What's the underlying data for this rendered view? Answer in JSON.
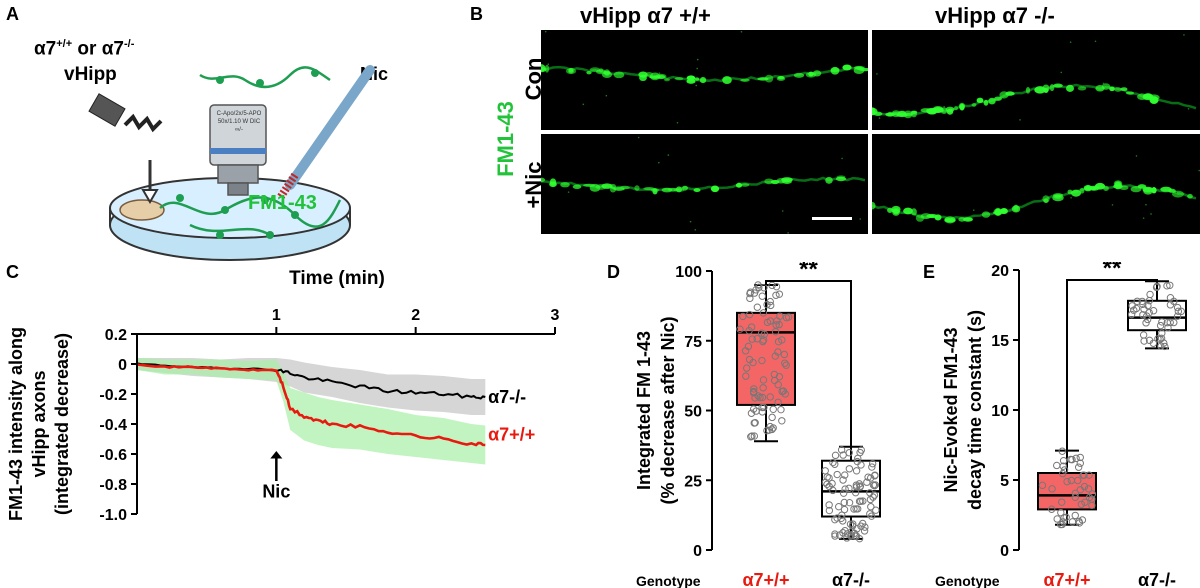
{
  "panels": {
    "a": "A",
    "b": "B",
    "c": "C",
    "d": "D",
    "e": "E"
  },
  "colors": {
    "wt": "#e8190f",
    "ko": "#000000",
    "green": "#22c33a",
    "box_fill": "#f46666",
    "ko_band": "#c8c8c8",
    "wt_band": "#a8f0a8"
  },
  "panel_a": {
    "genotype_label": "α7",
    "wt_sup": "+/+",
    "or_text": " or α7",
    "ko_sup": "-/-",
    "region": "vHipp",
    "drug": "Nic",
    "dye": "FM1-43",
    "objective_text_1": "C-Apo/2x/5-APO",
    "objective_text_2": "50x/1.10 W DIC",
    "objective_text_3": "∞/-"
  },
  "panel_b": {
    "col_wt": "vHipp α7 +/+",
    "col_ko": "vHipp α7 -/-",
    "row_con": "Con",
    "row_nic": "+Nic",
    "stain": "FM1-43"
  },
  "chart_data": [
    {
      "id": "C",
      "type": "line",
      "title": "Time (min)",
      "ylabel_lines": [
        "FM1-43 intensity along",
        "vHipp axons",
        "(integrated decrease)"
      ],
      "x_ticks": [
        "1",
        "2",
        "3"
      ],
      "x_tick_values": [
        1,
        2,
        3
      ],
      "xlim": [
        0,
        3
      ],
      "y_ticks": [
        "0.2",
        "0",
        "-0.2",
        "-0.4",
        "-0.6",
        "-0.8",
        "-1.0"
      ],
      "y_tick_values": [
        0.2,
        0,
        -0.2,
        -0.4,
        -0.6,
        -0.8,
        -1.0
      ],
      "ylim": [
        -1.0,
        0.2
      ],
      "annotation": "Nic",
      "annotation_x": 1.0,
      "series": [
        {
          "name": "α7-/-",
          "color": "#000000",
          "band": "#c8c8c8",
          "x": [
            0,
            0.2,
            0.4,
            0.6,
            0.8,
            1.0,
            1.1,
            1.2,
            1.4,
            1.6,
            1.8,
            2.0,
            2.2,
            2.4,
            2.5
          ],
          "values": [
            0,
            -0.01,
            -0.02,
            -0.03,
            -0.03,
            -0.04,
            -0.06,
            -0.09,
            -0.12,
            -0.15,
            -0.18,
            -0.19,
            -0.2,
            -0.22,
            -0.22
          ],
          "band_width": [
            0.04,
            0.05,
            0.06,
            0.06,
            0.07,
            0.08,
            0.09,
            0.1,
            0.1,
            0.11,
            0.11,
            0.12,
            0.12,
            0.12,
            0.12
          ]
        },
        {
          "name": "α7+/+",
          "color": "#e8190f",
          "band": "#a8f0a8",
          "x": [
            0,
            0.2,
            0.4,
            0.6,
            0.8,
            1.0,
            1.05,
            1.1,
            1.2,
            1.3,
            1.4,
            1.6,
            1.8,
            2.0,
            2.2,
            2.4,
            2.5
          ],
          "values": [
            0,
            -0.02,
            -0.02,
            -0.03,
            -0.04,
            -0.04,
            -0.15,
            -0.3,
            -0.35,
            -0.38,
            -0.4,
            -0.42,
            -0.45,
            -0.48,
            -0.5,
            -0.53,
            -0.54
          ],
          "band_width": [
            0.04,
            0.05,
            0.05,
            0.06,
            0.06,
            0.07,
            0.1,
            0.14,
            0.16,
            0.16,
            0.16,
            0.15,
            0.15,
            0.14,
            0.14,
            0.13,
            0.13
          ]
        }
      ]
    },
    {
      "id": "D",
      "type": "box",
      "ylabel_lines": [
        "Integrated  FM 1-43",
        "(% decrease after Nic)"
      ],
      "y_ticks": [
        "100",
        "75",
        "50",
        "25",
        "0"
      ],
      "y_tick_values": [
        100,
        75,
        50,
        25,
        0
      ],
      "ylim": [
        0,
        100
      ],
      "xlabel": "Genotype",
      "categories": [
        "α7+/+",
        "α7-/-"
      ],
      "significance": "**",
      "boxes": [
        {
          "name": "α7+/+",
          "min": 39,
          "q1": 52,
          "median": 78,
          "q3": 85,
          "max": 95,
          "n": 90,
          "color": "#f46666"
        },
        {
          "name": "α7-/-",
          "min": 4,
          "q1": 12,
          "median": 21,
          "q3": 32,
          "max": 37,
          "n": 90,
          "color": "#ffffff"
        }
      ]
    },
    {
      "id": "E",
      "type": "box",
      "ylabel_lines": [
        "Nic-Evoked FM1-43",
        "decay time constant (s)"
      ],
      "y_ticks": [
        "20",
        "15",
        "10",
        "5",
        "0"
      ],
      "y_tick_values": [
        20,
        15,
        10,
        5,
        0
      ],
      "ylim": [
        0,
        20
      ],
      "xlabel": "Genotype",
      "categories": [
        "α7+/+",
        "α7-/-"
      ],
      "significance": "**",
      "boxes": [
        {
          "name": "α7+/+",
          "min": 1.8,
          "q1": 2.9,
          "median": 3.9,
          "q3": 5.5,
          "max": 7.1,
          "n": 45,
          "color": "#f46666"
        },
        {
          "name": "α7-/-",
          "min": 14.4,
          "q1": 15.7,
          "median": 16.6,
          "q3": 17.8,
          "max": 19.2,
          "n": 45,
          "color": "#ffffff"
        }
      ]
    }
  ]
}
